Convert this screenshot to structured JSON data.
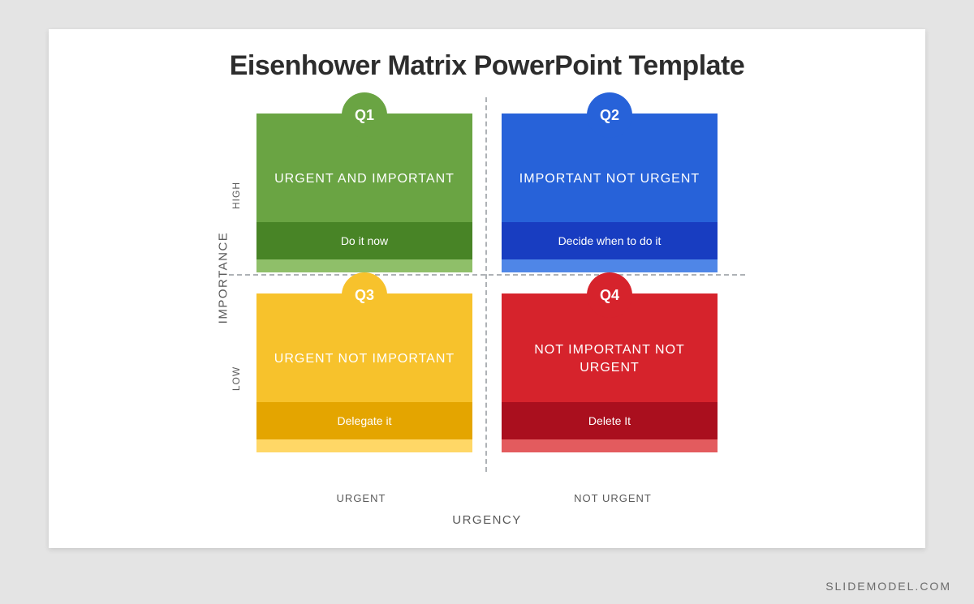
{
  "page": {
    "background_color": "#e4e4e4",
    "stage_color": "#ffffff"
  },
  "title": "Eisenhower Matrix PowerPoint Template",
  "axes": {
    "y_title": "IMPORTANCE",
    "y_high": "HIGH",
    "y_low": "LOW",
    "x_title": "URGENCY",
    "x_left": "URGENT",
    "x_right": "NOT URGENT",
    "divider_color": "#aeb2b6"
  },
  "quadrants": [
    {
      "id": "Q1",
      "heading": "URGENT AND IMPORTANT",
      "action": "Do it now",
      "color": "#6aa443",
      "badge_color": "#6aa443",
      "action_color": "#488426",
      "trail_color": "#8fbf69"
    },
    {
      "id": "Q2",
      "heading": "IMPORTANT NOT URGENT",
      "action": "Decide when to do it",
      "color": "#2762d9",
      "badge_color": "#2762d9",
      "action_color": "#183dc1",
      "trail_color": "#4f86e7"
    },
    {
      "id": "Q3",
      "heading": "URGENT NOT IMPORTANT",
      "action": "Delegate it",
      "color": "#f7c22c",
      "badge_color": "#f7c22c",
      "action_color": "#e4a500",
      "trail_color": "#ffd766"
    },
    {
      "id": "Q4",
      "heading": "NOT IMPORTANT NOT URGENT",
      "action": "Delete It",
      "color": "#d6232c",
      "badge_color": "#d6232c",
      "action_color": "#aa0f1e",
      "trail_color": "#e35b5e"
    }
  ],
  "watermark": "SLIDEMODEL.COM",
  "chart_meta": {
    "type": "2x2-matrix",
    "rows": [
      "HIGH",
      "LOW"
    ],
    "cols": [
      "URGENT",
      "NOT URGENT"
    ],
    "title_fontsize_pt": 26,
    "label_fontsize_pt": 12,
    "axis_title_fontsize_pt": 11,
    "text_color": "#5a5a5a"
  }
}
